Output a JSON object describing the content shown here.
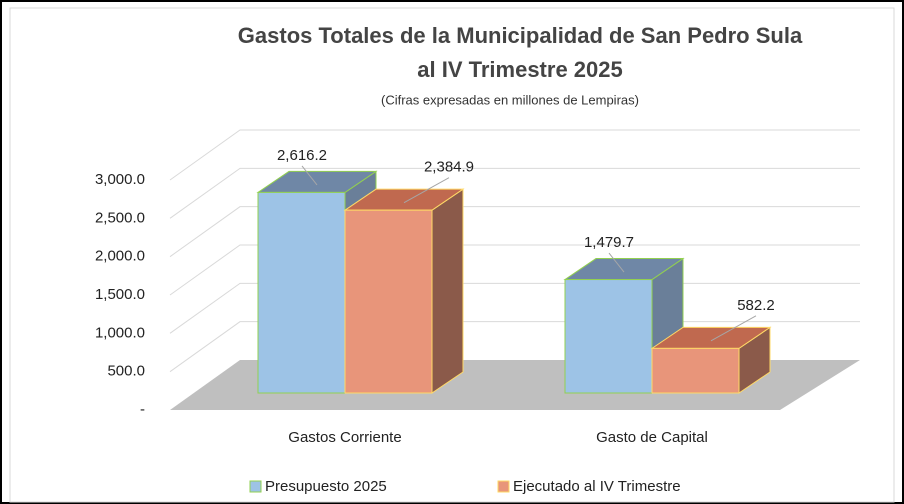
{
  "chart_data": {
    "type": "bar3d",
    "title": [
      "Gastos Totales de la Municipalidad  de San Pedro Sula",
      "al IV Trimestre 2025"
    ],
    "subtitle": "(Cifras expresadas en millones de Lempiras)",
    "categories": [
      "Gastos Corriente",
      "Gasto de  Capital"
    ],
    "series": [
      {
        "name": "Presupuesto 2025",
        "color": "#9dc3e6",
        "values": [
          2616.2,
          1479.7
        ],
        "value_labels": [
          "2,616.2",
          "1,479.7"
        ]
      },
      {
        "name": "Ejecutado al  IV Trimestre",
        "color": "#e8957a",
        "values": [
          2384.9,
          582.2
        ],
        "value_labels": [
          "2,384.9",
          "582.2"
        ]
      }
    ],
    "ylim": [
      0,
      3000
    ],
    "yticks": [
      {
        "value": 0,
        "label": "-"
      },
      {
        "value": 500,
        "label": "500.0"
      },
      {
        "value": 1000,
        "label": "1,000.0"
      },
      {
        "value": 1500,
        "label": "1,500.0"
      },
      {
        "value": 2000,
        "label": "2,000.0"
      },
      {
        "value": 2500,
        "label": "2,500.0"
      },
      {
        "value": 3000,
        "label": "3,000.0"
      }
    ],
    "grid": true,
    "legend": "bottom"
  }
}
